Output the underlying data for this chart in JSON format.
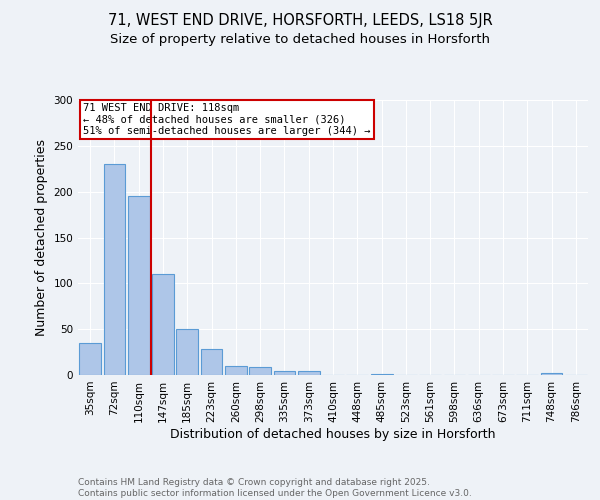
{
  "title1": "71, WEST END DRIVE, HORSFORTH, LEEDS, LS18 5JR",
  "title2": "Size of property relative to detached houses in Horsforth",
  "xlabel": "Distribution of detached houses by size in Horsforth",
  "ylabel": "Number of detached properties",
  "categories": [
    "35sqm",
    "72sqm",
    "110sqm",
    "147sqm",
    "185sqm",
    "223sqm",
    "260sqm",
    "298sqm",
    "335sqm",
    "373sqm",
    "410sqm",
    "448sqm",
    "485sqm",
    "523sqm",
    "561sqm",
    "598sqm",
    "636sqm",
    "673sqm",
    "711sqm",
    "748sqm",
    "786sqm"
  ],
  "values": [
    35,
    230,
    195,
    110,
    50,
    28,
    10,
    9,
    4,
    4,
    0,
    0,
    1,
    0,
    0,
    0,
    0,
    0,
    0,
    2,
    0
  ],
  "bar_color": "#aec6e8",
  "bar_edgecolor": "#5b9bd5",
  "red_line_x": 2.5,
  "annotation_text": "71 WEST END DRIVE: 118sqm\n← 48% of detached houses are smaller (326)\n51% of semi-detached houses are larger (344) →",
  "annotation_box_color": "#ffffff",
  "annotation_box_edgecolor": "#cc0000",
  "red_line_color": "#cc0000",
  "ylim": [
    0,
    300
  ],
  "yticks": [
    0,
    50,
    100,
    150,
    200,
    250,
    300
  ],
  "background_color": "#eef2f7",
  "fig_background_color": "#eef2f7",
  "footer_text": "Contains HM Land Registry data © Crown copyright and database right 2025.\nContains public sector information licensed under the Open Government Licence v3.0.",
  "title1_fontsize": 10.5,
  "title2_fontsize": 9.5,
  "xlabel_fontsize": 9,
  "ylabel_fontsize": 9,
  "tick_fontsize": 7.5,
  "footer_fontsize": 6.5
}
